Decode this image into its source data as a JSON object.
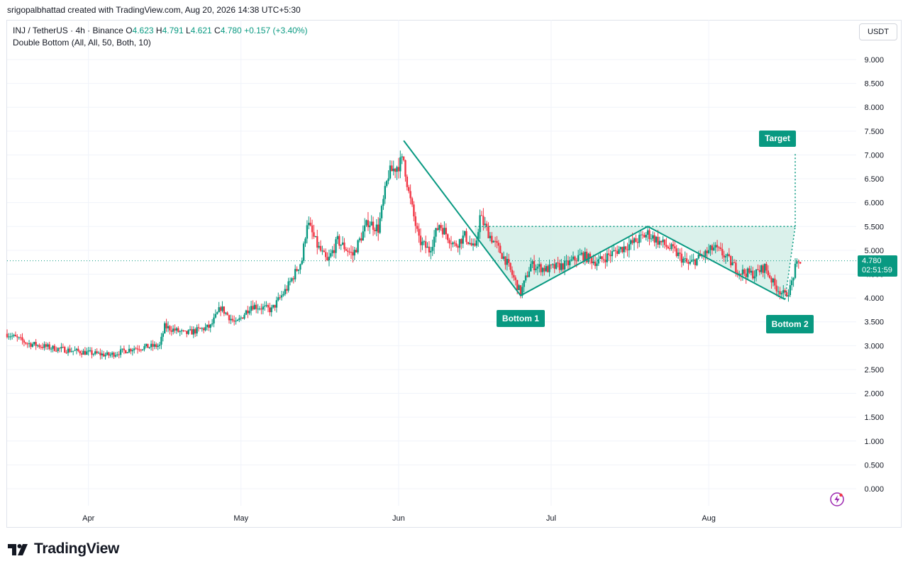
{
  "caption": "srigopalbhattad created with TradingView.com, Aug 20, 2026 14:38 UTC+5:30",
  "legend": {
    "symbol": "INJ / TetherUS · 4h · Binance",
    "o_label": "O",
    "o_value": "4.623",
    "h_label": "H",
    "h_value": "4.791",
    "l_label": "L",
    "l_value": "4.621",
    "c_label": "C",
    "c_value": "4.780",
    "change": "+0.157 (+3.40%)",
    "indicator": "Double Bottom (All, All, 50, Both, 10)"
  },
  "unit": "USDT",
  "last_price": {
    "price": "4.780",
    "countdown": "02:51:59"
  },
  "brand": "TradingView",
  "colors": {
    "up": "#089981",
    "down": "#f23645",
    "pattern": "#089981",
    "fill": "#d4efe7",
    "grid": "#f0f3fa"
  },
  "chart_data": {
    "type": "candlestick",
    "ylim": [
      0.0,
      9.0
    ],
    "y_ticks": [
      "0.000",
      "0.500",
      "1.000",
      "1.500",
      "2.000",
      "2.500",
      "3.000",
      "3.500",
      "4.000",
      "4.500",
      "5.000",
      "5.500",
      "6.000",
      "6.500",
      "7.000",
      "7.500",
      "8.000",
      "8.500",
      "9.000"
    ],
    "x_ticks": [
      {
        "date": "2026-04-01",
        "label": "Apr"
      },
      {
        "date": "2026-05-01",
        "label": "May"
      },
      {
        "date": "2026-06-01",
        "label": "Jun"
      },
      {
        "date": "2026-07-01",
        "label": "Jul"
      },
      {
        "date": "2026-08-01",
        "label": "Aug"
      }
    ],
    "xlim": [
      "2026-03-16",
      "2026-08-30"
    ],
    "price_path": [
      [
        "2026-03-16",
        3.25
      ],
      [
        "2026-03-20",
        3.05
      ],
      [
        "2026-03-25",
        2.95
      ],
      [
        "2026-04-01",
        2.85
      ],
      [
        "2026-04-05",
        2.8
      ],
      [
        "2026-04-10",
        2.95
      ],
      [
        "2026-04-15",
        3.0
      ],
      [
        "2026-04-16",
        3.4
      ],
      [
        "2026-04-20",
        3.25
      ],
      [
        "2026-04-25",
        3.4
      ],
      [
        "2026-04-27",
        3.8
      ],
      [
        "2026-04-30",
        3.45
      ],
      [
        "2026-05-03",
        3.85
      ],
      [
        "2026-05-07",
        3.75
      ],
      [
        "2026-05-10",
        4.2
      ],
      [
        "2026-05-13",
        4.8
      ],
      [
        "2026-05-14",
        5.6
      ],
      [
        "2026-05-16",
        5.1
      ],
      [
        "2026-05-18",
        4.75
      ],
      [
        "2026-05-20",
        5.2
      ],
      [
        "2026-05-23",
        4.9
      ],
      [
        "2026-05-26",
        5.6
      ],
      [
        "2026-05-28",
        5.45
      ],
      [
        "2026-05-30",
        6.6
      ],
      [
        "2026-06-02",
        6.9
      ],
      [
        "2026-06-03",
        6.2
      ],
      [
        "2026-06-05",
        5.2
      ],
      [
        "2026-06-07",
        5.0
      ],
      [
        "2026-06-09",
        5.55
      ],
      [
        "2026-06-12",
        5.1
      ],
      [
        "2026-06-14",
        5.3
      ],
      [
        "2026-06-16",
        5.0
      ],
      [
        "2026-06-17",
        5.7
      ],
      [
        "2026-06-19",
        5.3
      ],
      [
        "2026-06-22",
        4.8
      ],
      [
        "2026-06-25",
        4.1
      ],
      [
        "2026-06-27",
        4.7
      ],
      [
        "2026-06-30",
        4.6
      ],
      [
        "2026-07-04",
        4.7
      ],
      [
        "2026-07-07",
        4.9
      ],
      [
        "2026-07-10",
        4.75
      ],
      [
        "2026-07-14",
        5.0
      ],
      [
        "2026-07-17",
        5.15
      ],
      [
        "2026-07-20",
        5.35
      ],
      [
        "2026-07-22",
        5.2
      ],
      [
        "2026-07-25",
        5.0
      ],
      [
        "2026-07-28",
        4.7
      ],
      [
        "2026-07-31",
        4.9
      ],
      [
        "2026-08-02",
        5.05
      ],
      [
        "2026-08-04",
        4.9
      ],
      [
        "2026-08-07",
        4.55
      ],
      [
        "2026-08-10",
        4.5
      ],
      [
        "2026-08-12",
        4.65
      ],
      [
        "2026-08-14",
        4.25
      ],
      [
        "2026-08-16",
        4.05
      ],
      [
        "2026-08-17",
        4.2
      ],
      [
        "2026-08-18",
        4.62
      ],
      [
        "2026-08-19",
        4.78
      ]
    ],
    "pattern": {
      "name": "Double Bottom",
      "zigzag": [
        [
          "2026-06-02",
          7.3
        ],
        [
          "2026-06-25",
          4.05
        ],
        [
          "2026-07-20",
          5.5
        ],
        [
          "2026-08-16",
          3.97
        ]
      ],
      "neckline": {
        "from": "2026-06-16",
        "to": "2026-08-18",
        "value": 5.5
      },
      "target": {
        "date": "2026-08-18",
        "value": 7.05
      },
      "labels": [
        {
          "text": "Bottom 1",
          "date": "2026-06-25",
          "value": 4.05
        },
        {
          "text": "Bottom 2",
          "date": "2026-08-16",
          "value": 3.97
        },
        {
          "text": "Target",
          "date": "2026-08-18",
          "value": 7.05
        }
      ]
    },
    "last_close": 4.78
  }
}
